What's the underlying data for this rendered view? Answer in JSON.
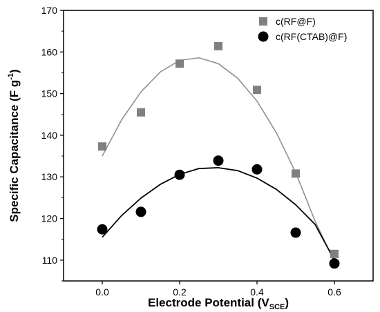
{
  "chart_data": {
    "type": "scatter",
    "xlabel": {
      "main": "Electrode Potential (V",
      "subscript": "SCE",
      "close": ")"
    },
    "ylabel": {
      "main": "Specific Capacitance (F g",
      "superscript": "-1",
      "close": ")"
    },
    "xlim": [
      -0.1,
      0.7
    ],
    "ylim": [
      105,
      170
    ],
    "x_ticks": [
      0.0,
      0.2,
      0.4,
      0.6
    ],
    "x_tick_labels": [
      "0.0",
      "0.2",
      "0.4",
      "0.6"
    ],
    "y_ticks": [
      110,
      120,
      130,
      140,
      150,
      160,
      170
    ],
    "y_tick_labels": [
      "110",
      "120",
      "130",
      "140",
      "150",
      "160",
      "170"
    ],
    "legend_position": "top-right",
    "series": [
      {
        "name": "c(RF@F)",
        "marker": "square",
        "color": "#808080",
        "points": [
          [
            0.0,
            137.3
          ],
          [
            0.1,
            145.5
          ],
          [
            0.2,
            157.2
          ],
          [
            0.3,
            161.4
          ],
          [
            0.4,
            150.9
          ],
          [
            0.5,
            130.8
          ],
          [
            0.6,
            111.5
          ]
        ],
        "fit": {
          "type": "polynomial",
          "color": "#909090",
          "x": [
            0.0,
            0.05,
            0.1,
            0.15,
            0.2,
            0.25,
            0.3,
            0.35,
            0.4,
            0.45,
            0.5,
            0.55,
            0.6
          ],
          "y": [
            135.0,
            143.7,
            150.4,
            155.2,
            158.0,
            158.6,
            157.2,
            153.7,
            148.2,
            140.6,
            131.0,
            119.4,
            109.6
          ]
        }
      },
      {
        "name": "c(RF(CTAB)@F)",
        "marker": "circle",
        "color": "#000000",
        "points": [
          [
            0.0,
            117.4
          ],
          [
            0.1,
            121.6
          ],
          [
            0.2,
            130.5
          ],
          [
            0.3,
            133.9
          ],
          [
            0.4,
            131.8
          ],
          [
            0.5,
            116.6
          ],
          [
            0.6,
            109.2
          ]
        ],
        "fit": {
          "type": "polynomial",
          "color": "#000000",
          "x": [
            0.0,
            0.05,
            0.1,
            0.15,
            0.2,
            0.25,
            0.3,
            0.35,
            0.4,
            0.45,
            0.5,
            0.55,
            0.6
          ],
          "y": [
            115.5,
            120.7,
            124.9,
            128.2,
            130.6,
            132.0,
            132.2,
            131.5,
            129.7,
            127.0,
            123.3,
            118.6,
            110.0
          ]
        }
      }
    ]
  }
}
